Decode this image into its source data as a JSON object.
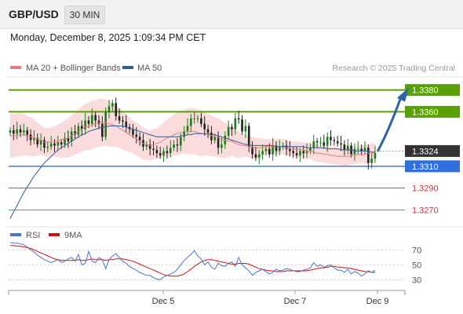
{
  "header": {
    "pair": "GBP/USD",
    "timeframe": "30 MIN"
  },
  "datetime": "Monday, December 8, 2025 1:09:34 PM CET",
  "colors": {
    "up": "#1a7f1a",
    "down": "#222222",
    "ma20": "#e97b7b",
    "bb_fill": "#fbdcdc",
    "ma50": "#2f5d9a",
    "green_level": "#5aa000",
    "blue_level": "#2f6fe0",
    "red_level": "#d33333",
    "arrow": "#2f63a8",
    "rsi": "#4a78c8",
    "rsi_ma": "#cc1111"
  },
  "chart_data": [
    {
      "type": "candlestick",
      "legend": [
        {
          "name": "MA 20 + Bollinger Bands",
          "color": "#e97b7b"
        },
        {
          "name": "MA 50",
          "color": "#2f5d9a"
        }
      ],
      "credit": "Research © 2025 Trading Central",
      "x_ticks": [
        "Dec 5",
        "Dec 7",
        "Dec 9"
      ],
      "ylim": [
        1.3258,
        1.3392
      ],
      "current_price": "1.3324",
      "levels": [
        {
          "label": "1.3380",
          "value": 1.338,
          "kind": "resistance"
        },
        {
          "label": "1.3360",
          "value": 1.336,
          "kind": "resistance"
        },
        {
          "label": "1.3310",
          "value": 1.331,
          "kind": "pivot"
        },
        {
          "label": "1.3290",
          "value": 1.329,
          "kind": "support"
        },
        {
          "label": "1.3270",
          "value": 1.327,
          "kind": "support"
        }
      ],
      "close": [
        1.3343,
        1.334,
        1.3344,
        1.3341,
        1.3343,
        1.3339,
        1.3334,
        1.3336,
        1.333,
        1.3334,
        1.3327,
        1.3328,
        1.3331,
        1.3329,
        1.3332,
        1.333,
        1.3336,
        1.3333,
        1.3342,
        1.3339,
        1.3347,
        1.3344,
        1.3352,
        1.3349,
        1.3357,
        1.3352,
        1.3349,
        1.3337,
        1.336,
        1.3365,
        1.3368,
        1.3356,
        1.3352,
        1.3351,
        1.3346,
        1.3344,
        1.3339,
        1.3337,
        1.3334,
        1.3328,
        1.333,
        1.3326,
        1.3325,
        1.3322,
        1.332,
        1.3324,
        1.3322,
        1.3327,
        1.333,
        1.3329,
        1.3337,
        1.3342,
        1.3347,
        1.3354,
        1.3354,
        1.3354,
        1.3349,
        1.3344,
        1.3341,
        1.3334,
        1.3337,
        1.3327,
        1.333,
        1.3338,
        1.3346,
        1.3344,
        1.3354,
        1.3353,
        1.3342,
        1.3347,
        1.3328,
        1.3321,
        1.3318,
        1.3321,
        1.3324,
        1.3326,
        1.3321,
        1.3329,
        1.3324,
        1.3328,
        1.3329,
        1.3326,
        1.3324,
        1.3322,
        1.332,
        1.3324,
        1.3322,
        1.3324,
        1.3327,
        1.3333,
        1.3332,
        1.3332,
        1.3329,
        1.3337,
        1.3334,
        1.3333,
        1.3331,
        1.333,
        1.3325,
        1.3329,
        1.3321,
        1.3326,
        1.3326,
        1.3324,
        1.3327,
        1.3313,
        1.3317,
        1.3322
      ],
      "ma20": [
        1.3338,
        1.3338,
        1.3339,
        1.3339,
        1.3339,
        1.3338,
        1.3337,
        1.3336,
        1.3335,
        1.3334,
        1.3332,
        1.3332,
        1.3332,
        1.3333,
        1.3333,
        1.3334,
        1.3335,
        1.3336,
        1.3338,
        1.334,
        1.3342,
        1.3344,
        1.3346,
        1.3347,
        1.3348,
        1.3349,
        1.335,
        1.335,
        1.335,
        1.3349,
        1.3348,
        1.3347,
        1.3345,
        1.3343,
        1.3341,
        1.3339,
        1.3337,
        1.3335,
        1.3333,
        1.3331,
        1.333,
        1.3329,
        1.333,
        1.3331,
        1.3332,
        1.3334,
        1.3336,
        1.3337,
        1.3339,
        1.334,
        1.3341,
        1.3342,
        1.3342,
        1.3342,
        1.3342,
        1.3341,
        1.334,
        1.334,
        1.3339,
        1.3338,
        1.3337,
        1.3336,
        1.3335,
        1.3334,
        1.3333,
        1.3333,
        1.3331,
        1.333,
        1.3329,
        1.3329,
        1.3328,
        1.3327,
        1.3327,
        1.3327,
        1.3327,
        1.3328,
        1.3328,
        1.3328,
        1.3328,
        1.3328,
        1.3328,
        1.3327,
        1.3326,
        1.3326,
        1.3326,
        1.3325,
        1.3325,
        1.3324,
        1.3324,
        1.3323,
        1.3322,
        1.3322,
        1.3321,
        1.3321,
        1.332,
        1.332,
        1.3319,
        1.3319,
        1.3319,
        1.3319,
        1.332,
        1.332,
        1.3321,
        1.3321,
        1.3321,
        1.3322,
        1.3322,
        1.3323
      ],
      "bb_upper": [
        1.3358,
        1.3358,
        1.3359,
        1.3359,
        1.3358,
        1.3356,
        1.3355,
        1.3353,
        1.335,
        1.3348,
        1.3345,
        1.3345,
        1.3346,
        1.3347,
        1.3348,
        1.335,
        1.3352,
        1.3354,
        1.3357,
        1.3359,
        1.3362,
        1.3365,
        1.3367,
        1.3369,
        1.337,
        1.3371,
        1.3372,
        1.3372,
        1.3371,
        1.337,
        1.3368,
        1.3366,
        1.3363,
        1.3361,
        1.3358,
        1.3355,
        1.3352,
        1.335,
        1.3348,
        1.3346,
        1.3344,
        1.3343,
        1.3344,
        1.3345,
        1.3347,
        1.335,
        1.3353,
        1.3355,
        1.3358,
        1.336,
        1.3361,
        1.3362,
        1.3363,
        1.3363,
        1.3363,
        1.3362,
        1.3361,
        1.336,
        1.3358,
        1.3357,
        1.3355,
        1.3354,
        1.3352,
        1.335,
        1.3348,
        1.3346,
        1.3344,
        1.3342,
        1.334,
        1.3339,
        1.3338,
        1.3337,
        1.3336,
        1.3336,
        1.3335,
        1.3335,
        1.3335,
        1.3335,
        1.3335,
        1.3335,
        1.3335,
        1.3334,
        1.3333,
        1.3333,
        1.3333,
        1.3332,
        1.3332,
        1.3332,
        1.3331,
        1.3331,
        1.333,
        1.333,
        1.3329,
        1.3329,
        1.3328,
        1.3328,
        1.3327,
        1.3327,
        1.3328,
        1.3328,
        1.3328,
        1.3328,
        1.3329,
        1.3329,
        1.333,
        1.333,
        1.3331,
        1.3331
      ],
      "bb_lower": [
        1.3318,
        1.3318,
        1.3319,
        1.3319,
        1.332,
        1.332,
        1.3319,
        1.3319,
        1.332,
        1.332,
        1.3319,
        1.3319,
        1.3318,
        1.3319,
        1.3318,
        1.3318,
        1.3318,
        1.3318,
        1.3319,
        1.3321,
        1.3322,
        1.3323,
        1.3325,
        1.3325,
        1.3326,
        1.3327,
        1.3328,
        1.3328,
        1.3329,
        1.3328,
        1.3328,
        1.3328,
        1.3327,
        1.3325,
        1.3324,
        1.3323,
        1.3322,
        1.332,
        1.3318,
        1.3316,
        1.3316,
        1.3315,
        1.3316,
        1.3317,
        1.3317,
        1.3318,
        1.3319,
        1.3319,
        1.332,
        1.332,
        1.3321,
        1.3322,
        1.3321,
        1.3321,
        1.3321,
        1.332,
        1.3319,
        1.332,
        1.332,
        1.3319,
        1.3319,
        1.3318,
        1.3318,
        1.3318,
        1.3318,
        1.332,
        1.3318,
        1.3318,
        1.3318,
        1.3319,
        1.3318,
        1.3317,
        1.3318,
        1.3318,
        1.3319,
        1.3321,
        1.3321,
        1.3321,
        1.3321,
        1.3321,
        1.3321,
        1.332,
        1.3319,
        1.3319,
        1.3319,
        1.3318,
        1.3318,
        1.3316,
        1.3317,
        1.3315,
        1.3314,
        1.3314,
        1.3313,
        1.3313,
        1.3312,
        1.3312,
        1.3311,
        1.3311,
        1.331,
        1.331,
        1.3312,
        1.3312,
        1.3313,
        1.3313,
        1.3312,
        1.3314,
        1.3313,
        1.3315
      ],
      "ma50": [
        1.3262,
        1.3268,
        1.3274,
        1.328,
        1.3286,
        1.3291,
        1.3296,
        1.3301,
        1.3305,
        1.3309,
        1.3313,
        1.3316,
        1.3319,
        1.3322,
        1.3325,
        1.3327,
        1.3329,
        1.3331,
        1.3333,
        1.3335,
        1.3337,
        1.3339,
        1.334,
        1.3342,
        1.3343,
        1.3344,
        1.3345,
        1.3346,
        1.3346,
        1.3347,
        1.3347,
        1.3347,
        1.3347,
        1.3347,
        1.3346,
        1.3345,
        1.3344,
        1.3343,
        1.3342,
        1.3341,
        1.334,
        1.3339,
        1.3338,
        1.3337,
        1.3337,
        1.3337,
        1.3337,
        1.3337,
        1.3337,
        1.3337,
        1.3338,
        1.3338,
        1.3339,
        1.3339,
        1.334,
        1.334,
        1.334,
        1.334,
        1.334,
        1.3339,
        1.3339,
        1.3338,
        1.3337,
        1.3336,
        1.3335,
        1.3334,
        1.3333,
        1.3332,
        1.3331,
        1.333,
        1.333,
        1.3329,
        1.3329,
        1.3329,
        1.3329,
        1.3329,
        1.3329,
        1.3329,
        1.3328,
        1.3328,
        1.3328,
        1.3328,
        1.3328,
        1.3328,
        1.3328,
        1.3328,
        1.3328,
        1.3327,
        1.3327,
        1.3327,
        1.3327,
        1.3327,
        1.3327,
        1.3326,
        1.3326,
        1.3326,
        1.3326,
        1.3325,
        1.3325,
        1.3325,
        1.3325,
        1.3324,
        1.3324,
        1.3324,
        1.3324,
        1.3324,
        1.3323,
        1.3323
      ]
    },
    {
      "type": "line",
      "legend": [
        {
          "name": "RSI",
          "color": "#4a78c8"
        },
        {
          "name": "9MA",
          "color": "#cc1111"
        }
      ],
      "y_ticks": [
        "70",
        "50",
        "30"
      ],
      "ylim": [
        20,
        83
      ],
      "rsi": [
        80,
        79,
        79,
        78,
        77,
        74,
        70,
        67,
        63,
        60,
        57,
        55,
        53,
        55,
        57,
        53,
        55,
        58,
        60,
        55,
        64,
        50,
        52,
        68,
        55,
        53,
        60,
        57,
        45,
        57,
        62,
        65,
        60,
        55,
        52,
        48,
        45,
        43,
        40,
        38,
        36,
        36,
        33,
        31,
        30,
        34,
        36,
        38,
        40,
        44,
        50,
        56,
        60,
        64,
        69,
        62,
        58,
        50,
        54,
        47,
        44,
        52,
        49,
        48,
        52,
        54,
        48,
        60,
        50,
        46,
        42,
        36,
        40,
        42,
        44,
        41,
        38,
        40,
        44,
        42,
        43,
        45,
        44,
        42,
        41,
        41,
        43,
        44,
        46,
        53,
        48,
        50,
        47,
        49,
        50,
        46,
        43,
        43,
        40,
        44,
        38,
        41,
        39,
        35,
        38,
        42,
        40,
        43
      ],
      "ma9": [
        76,
        76,
        75,
        75,
        74,
        73,
        72,
        70,
        68,
        66,
        64,
        62,
        60,
        58,
        57,
        56,
        56,
        56,
        56,
        56,
        57,
        56,
        56,
        57,
        58,
        57,
        57,
        57,
        56,
        57,
        57,
        58,
        58,
        58,
        57,
        56,
        55,
        53,
        51,
        49,
        47,
        45,
        43,
        41,
        39,
        37,
        36,
        35,
        35,
        35,
        36,
        38,
        41,
        44,
        48,
        51,
        54,
        56,
        57,
        57,
        56,
        55,
        54,
        53,
        52,
        51,
        51,
        52,
        52,
        52,
        51,
        49,
        47,
        45,
        44,
        43,
        42,
        42,
        41,
        41,
        41,
        42,
        42,
        42,
        42,
        42,
        42,
        42,
        43,
        44,
        45,
        46,
        46,
        47,
        48,
        48,
        47,
        47,
        46,
        46,
        45,
        44,
        43,
        42,
        41,
        41,
        40,
        40
      ]
    }
  ]
}
